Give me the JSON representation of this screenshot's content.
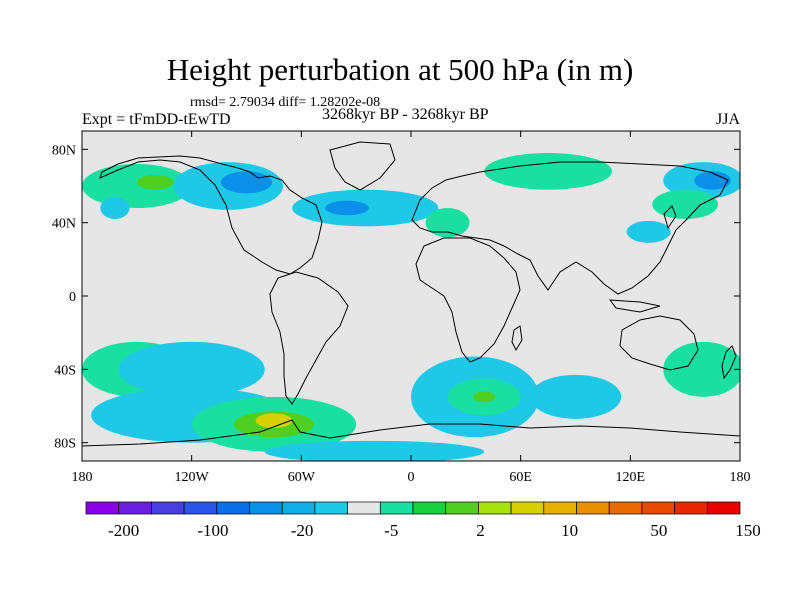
{
  "title": "Height perturbation at 500 hPa (in m)",
  "rmsd_line": "rmsd= 2.79034 diff= 1.28202e-08",
  "left_label": "Expt = tFmDD-tEwTD",
  "center_label": "3268kyr BP - 3268kyr BP",
  "right_label": "JJA",
  "map": {
    "projection": "cylindrical-equidistant",
    "lon_range": [
      -180,
      180
    ],
    "lat_range": [
      -90,
      90
    ],
    "land_outline_color": "#000000",
    "background_color": "#e6e6e6",
    "lat_ticks": [
      {
        "lat": 80,
        "label": "80N"
      },
      {
        "lat": 40,
        "label": "40N"
      },
      {
        "lat": 0,
        "label": "0"
      },
      {
        "lat": -40,
        "label": "40S"
      },
      {
        "lat": -80,
        "label": "80S"
      }
    ],
    "lon_ticks": [
      {
        "lon": -180,
        "label": "180"
      },
      {
        "lon": -120,
        "label": "120W"
      },
      {
        "lon": -60,
        "label": "60W"
      },
      {
        "lon": 0,
        "label": "0"
      },
      {
        "lon": 60,
        "label": "60E"
      },
      {
        "lon": 120,
        "label": "120E"
      },
      {
        "lon": 180,
        "label": "180"
      }
    ]
  },
  "colorbar": {
    "colors": [
      "#8a00e8",
      "#6a1fe0",
      "#4a3ee0",
      "#2a55e8",
      "#0a6fe8",
      "#0a90e8",
      "#10aee8",
      "#20c8e8",
      "#e6e6e6",
      "#19e0a0",
      "#19d040",
      "#4fd020",
      "#a8e010",
      "#d6d000",
      "#e8b000",
      "#e89000",
      "#e86a00",
      "#e84a00",
      "#e82800",
      "#e80000"
    ],
    "labels": [
      {
        "index": 1,
        "text": "-200"
      },
      {
        "index": 4,
        "text": "-100"
      },
      {
        "index": 7,
        "text": "-20"
      },
      {
        "index": 10,
        "text": "-5"
      },
      {
        "index": 13,
        "text": "2"
      },
      {
        "index": 16,
        "text": "10"
      },
      {
        "index": 19,
        "text": "50"
      },
      {
        "index": 22,
        "text": "150"
      }
    ]
  },
  "fields": [
    {
      "lon": -150,
      "lat": 60,
      "rx": 30,
      "ry": 12,
      "level": "+5"
    },
    {
      "lon": -140,
      "lat": 62,
      "rx": 10,
      "ry": 4,
      "level": "+10"
    },
    {
      "lon": -100,
      "lat": 60,
      "rx": 30,
      "ry": 13,
      "level": "-5"
    },
    {
      "lon": -90,
      "lat": 62,
      "rx": 14,
      "ry": 6,
      "level": "-20"
    },
    {
      "lon": -162,
      "lat": 48,
      "rx": 8,
      "ry": 6,
      "level": "-5"
    },
    {
      "lon": -25,
      "lat": 48,
      "rx": 40,
      "ry": 10,
      "level": "-5"
    },
    {
      "lon": -35,
      "lat": 48,
      "rx": 12,
      "ry": 4,
      "level": "-20"
    },
    {
      "lon": 20,
      "lat": 40,
      "rx": 12,
      "ry": 8,
      "level": "+5"
    },
    {
      "lon": 75,
      "lat": 68,
      "rx": 35,
      "ry": 10,
      "level": "+5"
    },
    {
      "lon": 160,
      "lat": 63,
      "rx": 22,
      "ry": 10,
      "level": "-5"
    },
    {
      "lon": 165,
      "lat": 63,
      "rx": 10,
      "ry": 5,
      "level": "-20"
    },
    {
      "lon": 150,
      "lat": 50,
      "rx": 18,
      "ry": 8,
      "level": "+5"
    },
    {
      "lon": 130,
      "lat": 35,
      "rx": 12,
      "ry": 6,
      "level": "-5"
    },
    {
      "lon": -150,
      "lat": -40,
      "rx": 30,
      "ry": 15,
      "level": "+5"
    },
    {
      "lon": -120,
      "lat": -40,
      "rx": 40,
      "ry": 15,
      "level": "-5"
    },
    {
      "lon": -120,
      "lat": -65,
      "rx": 55,
      "ry": 15,
      "level": "-5"
    },
    {
      "lon": -75,
      "lat": -70,
      "rx": 45,
      "ry": 15,
      "level": "+5"
    },
    {
      "lon": -75,
      "lat": -70,
      "rx": 22,
      "ry": 7,
      "level": "+10"
    },
    {
      "lon": -75,
      "lat": -68,
      "rx": 10,
      "ry": 4,
      "level": "+50"
    },
    {
      "lon": 35,
      "lat": -55,
      "rx": 35,
      "ry": 22,
      "level": "-5"
    },
    {
      "lon": 40,
      "lat": -55,
      "rx": 20,
      "ry": 10,
      "level": "+5"
    },
    {
      "lon": 40,
      "lat": -55,
      "rx": 6,
      "ry": 3,
      "level": "+10"
    },
    {
      "lon": 90,
      "lat": -55,
      "rx": 25,
      "ry": 12,
      "level": "-5"
    },
    {
      "lon": 160,
      "lat": -40,
      "rx": 22,
      "ry": 15,
      "level": "+5"
    },
    {
      "lon": -20,
      "lat": -85,
      "rx": 60,
      "ry": 6,
      "level": "-5"
    }
  ]
}
